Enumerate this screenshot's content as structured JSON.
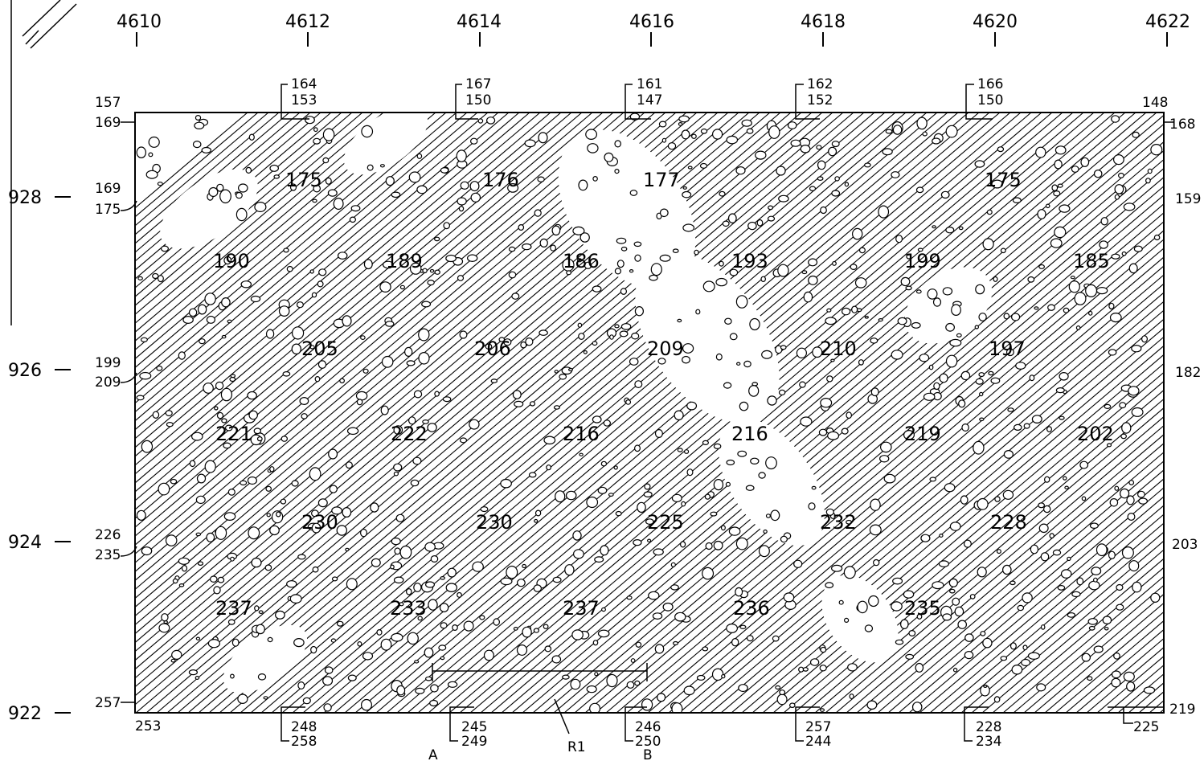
{
  "top_easting_labels": [
    "4610",
    "4612",
    "4614",
    "4616",
    "4618",
    "4620",
    "4622"
  ],
  "left_northing_labels": [
    "928",
    "926",
    "924",
    "922"
  ],
  "left_elevations": [
    "157",
    "169",
    "169",
    "175",
    "199",
    "209",
    "226",
    "235",
    "257",
    "253"
  ],
  "right_elevations": [
    "148",
    "168",
    "159",
    "182",
    "203",
    "219",
    "225"
  ],
  "top_section_marks": [
    {
      "upper": "164",
      "lower": "153"
    },
    {
      "upper": "167",
      "lower": "150"
    },
    {
      "upper": "161",
      "lower": "147"
    },
    {
      "upper": "162",
      "lower": "152"
    },
    {
      "upper": "166",
      "lower": "150"
    }
  ],
  "bottom_section_marks": [
    {
      "upper": "248",
      "lower": "258"
    },
    {
      "upper": "245",
      "lower": "249"
    },
    {
      "upper": "246",
      "lower": "250"
    },
    {
      "upper": "257",
      "lower": "244"
    },
    {
      "upper": "228",
      "lower": "234"
    }
  ],
  "interior_values": [
    "175",
    "176",
    "177",
    "175",
    "190",
    "189",
    "186",
    "193",
    "199",
    "185",
    "205",
    "206",
    "209",
    "210",
    "197",
    "221",
    "222",
    "216",
    "216",
    "219",
    "202",
    "230",
    "230",
    "225",
    "232",
    "228",
    "237",
    "233",
    "237",
    "236",
    "235"
  ],
  "section_line": {
    "start": "A",
    "end": "B",
    "marker": "R1"
  },
  "colors": {
    "ink": "#000000",
    "paper": "#ffffff"
  }
}
